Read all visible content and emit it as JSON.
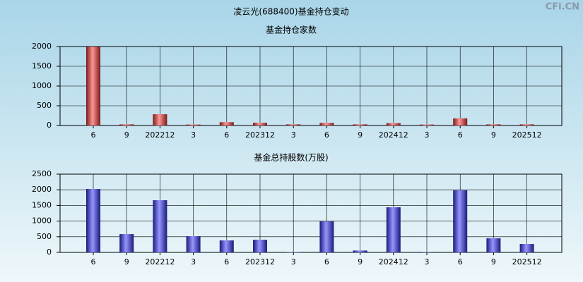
{
  "page": {
    "title": "凌云光(688400)基金持仓变动",
    "watermark": "CFi.CN"
  },
  "chart_data": [
    {
      "type": "bar",
      "title": "基金持仓家数",
      "categories": [
        "6",
        "9",
        "202212",
        "3",
        "6",
        "202312",
        "3",
        "6",
        "9",
        "202412",
        "3",
        "6",
        "9",
        "202512"
      ],
      "values": [
        1995,
        30,
        285,
        25,
        85,
        70,
        30,
        65,
        30,
        60,
        25,
        180,
        30,
        30
      ],
      "color": "#e03030",
      "ylim": [
        0,
        2000
      ],
      "yticks": [
        0,
        500,
        1000,
        1500,
        2000
      ],
      "grid": true
    },
    {
      "type": "bar",
      "title": "基金总持股数(万股)",
      "categories": [
        "6",
        "9",
        "202212",
        "3",
        "6",
        "202312",
        "3",
        "6",
        "9",
        "202412",
        "3",
        "6",
        "9",
        "202512"
      ],
      "values": [
        2027,
        585,
        1667,
        518,
        383,
        405,
        10,
        990,
        60,
        1441,
        15,
        1982,
        450,
        270
      ],
      "color": "#3030e0",
      "ylim": [
        0,
        2500
      ],
      "yticks": [
        0,
        500,
        1000,
        1500,
        2000,
        2500
      ],
      "grid": true
    }
  ]
}
